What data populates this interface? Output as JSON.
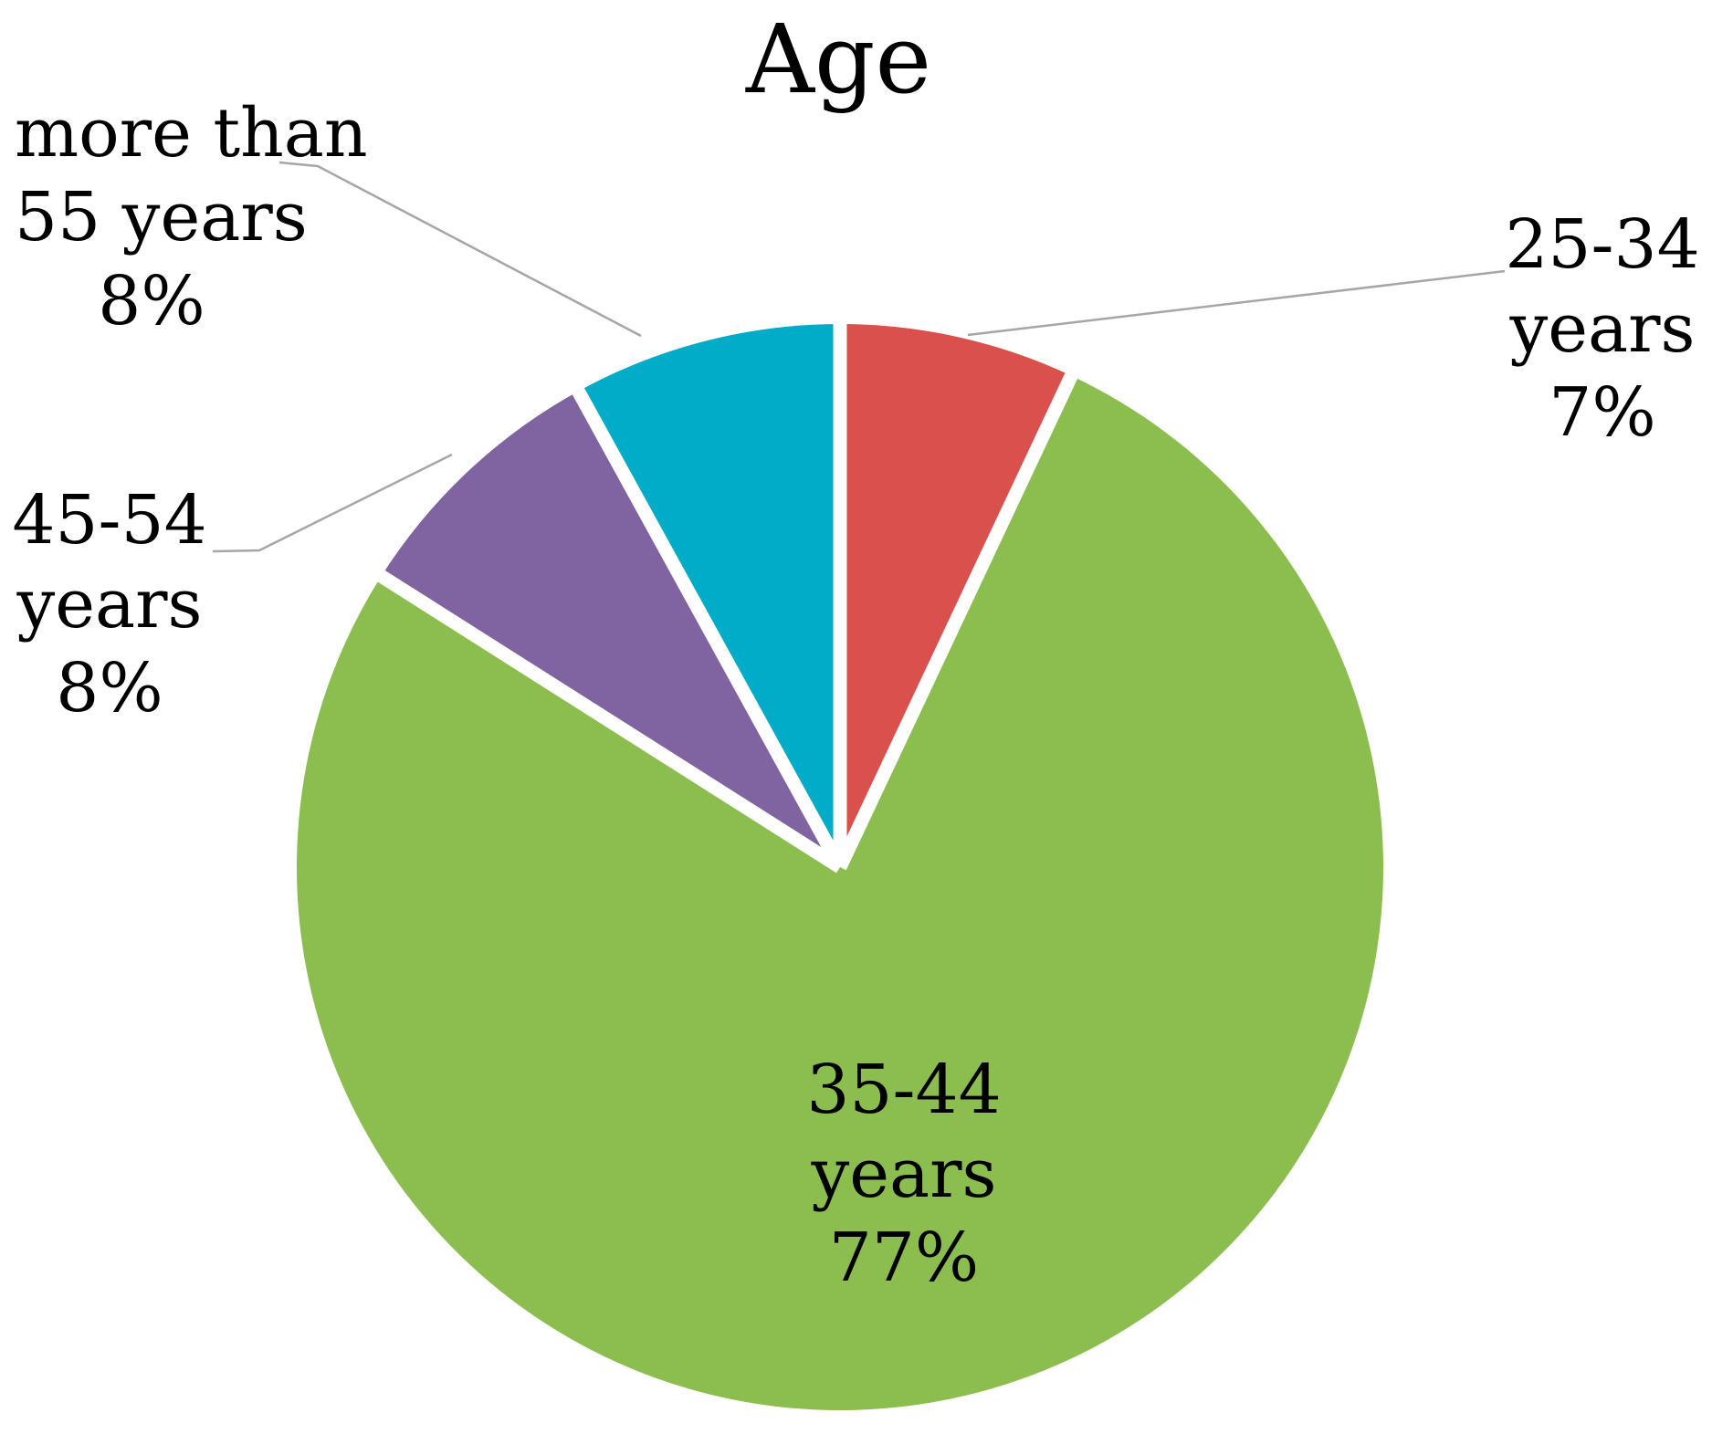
{
  "page": {
    "background_color": "#FFFFFF"
  },
  "chart_data": {
    "type": "pie",
    "title": "Age",
    "start_angle_deg": 0,
    "direction": "clockwise",
    "legend_position": "none",
    "grid": false,
    "text_color": "#000000",
    "slice_separator_color": "#FFFFFF",
    "leader_line_color": "#A6A6A6",
    "categories": [
      "25-34 years",
      "35-44 years",
      "45-54 years",
      "more than 55 years"
    ],
    "values": [
      7,
      77,
      8,
      8
    ],
    "slices": [
      {
        "label": "25-34 years",
        "value_pct": 7,
        "color": "#D9504C",
        "label_lines": [
          "25-34",
          "years",
          "7%"
        ],
        "label_placement": "outside-right",
        "leader_line": true
      },
      {
        "label": "35-44 years",
        "value_pct": 77,
        "color": "#8CBE4F",
        "label_lines": [
          "35-44",
          "years",
          "77%"
        ],
        "label_placement": "inside",
        "leader_line": false
      },
      {
        "label": "45-54 years",
        "value_pct": 8,
        "color": "#8064A2",
        "label_lines": [
          "45-54",
          "years",
          "8%"
        ],
        "label_placement": "outside-left",
        "leader_line": true
      },
      {
        "label": "more than 55 years",
        "value_pct": 8,
        "color": "#00ACC8",
        "label_lines": [
          "more than",
          "55 years",
          "8%"
        ],
        "label_placement": "outside-top-left",
        "leader_line": true
      }
    ]
  }
}
